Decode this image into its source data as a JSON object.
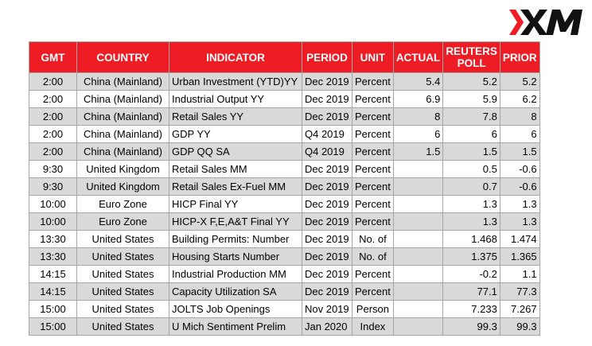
{
  "brand": {
    "logo_text": "XM",
    "accent": "#ee1c25"
  },
  "table": {
    "headers": [
      "GMT",
      "COUNTRY",
      "INDICATOR",
      "PERIOD",
      "UNIT",
      "ACTUAL",
      "REUTERS POLL",
      "PRIOR"
    ],
    "rows": [
      [
        "2:00",
        "China (Mainland)",
        "Urban Investment (YTD)YY",
        "Dec 2019",
        "Percent",
        "5.4",
        "5.2",
        "5.2"
      ],
      [
        "2:00",
        "China (Mainland)",
        "Industrial Output YY",
        "Dec 2019",
        "Percent",
        "6.9",
        "5.9",
        "6.2"
      ],
      [
        "2:00",
        "China (Mainland)",
        "Retail Sales YY",
        "Dec 2019",
        "Percent",
        "8",
        "7.8",
        "8"
      ],
      [
        "2:00",
        "China (Mainland)",
        "GDP YY",
        "Q4 2019",
        "Percent",
        "6",
        "6",
        "6"
      ],
      [
        "2:00",
        "China (Mainland)",
        "GDP QQ SA",
        "Q4 2019",
        "Percent",
        "1.5",
        "1.5",
        "1.5"
      ],
      [
        "9:30",
        "United Kingdom",
        "Retail Sales MM",
        "Dec 2019",
        "Percent",
        "",
        "0.5",
        "-0.6"
      ],
      [
        "9:30",
        "United Kingdom",
        "Retail Sales Ex-Fuel MM",
        "Dec 2019",
        "Percent",
        "",
        "0.7",
        "-0.6"
      ],
      [
        "10:00",
        "Euro Zone",
        "HICP Final YY",
        "Dec 2019",
        "Percent",
        "",
        "1.3",
        "1.3"
      ],
      [
        "10:00",
        "Euro Zone",
        "HICP-X F,E,A&T Final YY",
        "Dec 2019",
        "Percent",
        "",
        "1.3",
        "1.3"
      ],
      [
        "13:30",
        "United States",
        "Building Permits: Number",
        "Dec 2019",
        "No. of",
        "",
        "1.468",
        "1.474"
      ],
      [
        "13:30",
        "United States",
        "Housing Starts Number",
        "Dec 2019",
        "No. of",
        "",
        "1.375",
        "1.365"
      ],
      [
        "14:15",
        "United States",
        "Industrial Production MM",
        "Dec 2019",
        "Percent",
        "",
        "-0.2",
        "1.1"
      ],
      [
        "14:15",
        "United States",
        "Capacity Utilization SA",
        "Dec 2019",
        "Percent",
        "",
        "77.1",
        "77.3"
      ],
      [
        "15:00",
        "United States",
        "JOLTS Job Openings",
        "Nov 2019",
        "Person",
        "",
        "7.233",
        "7.267"
      ],
      [
        "15:00",
        "United States",
        "U Mich Sentiment Prelim",
        "Jan 2020",
        "Index",
        "",
        "99.3",
        "99.3"
      ]
    ]
  }
}
